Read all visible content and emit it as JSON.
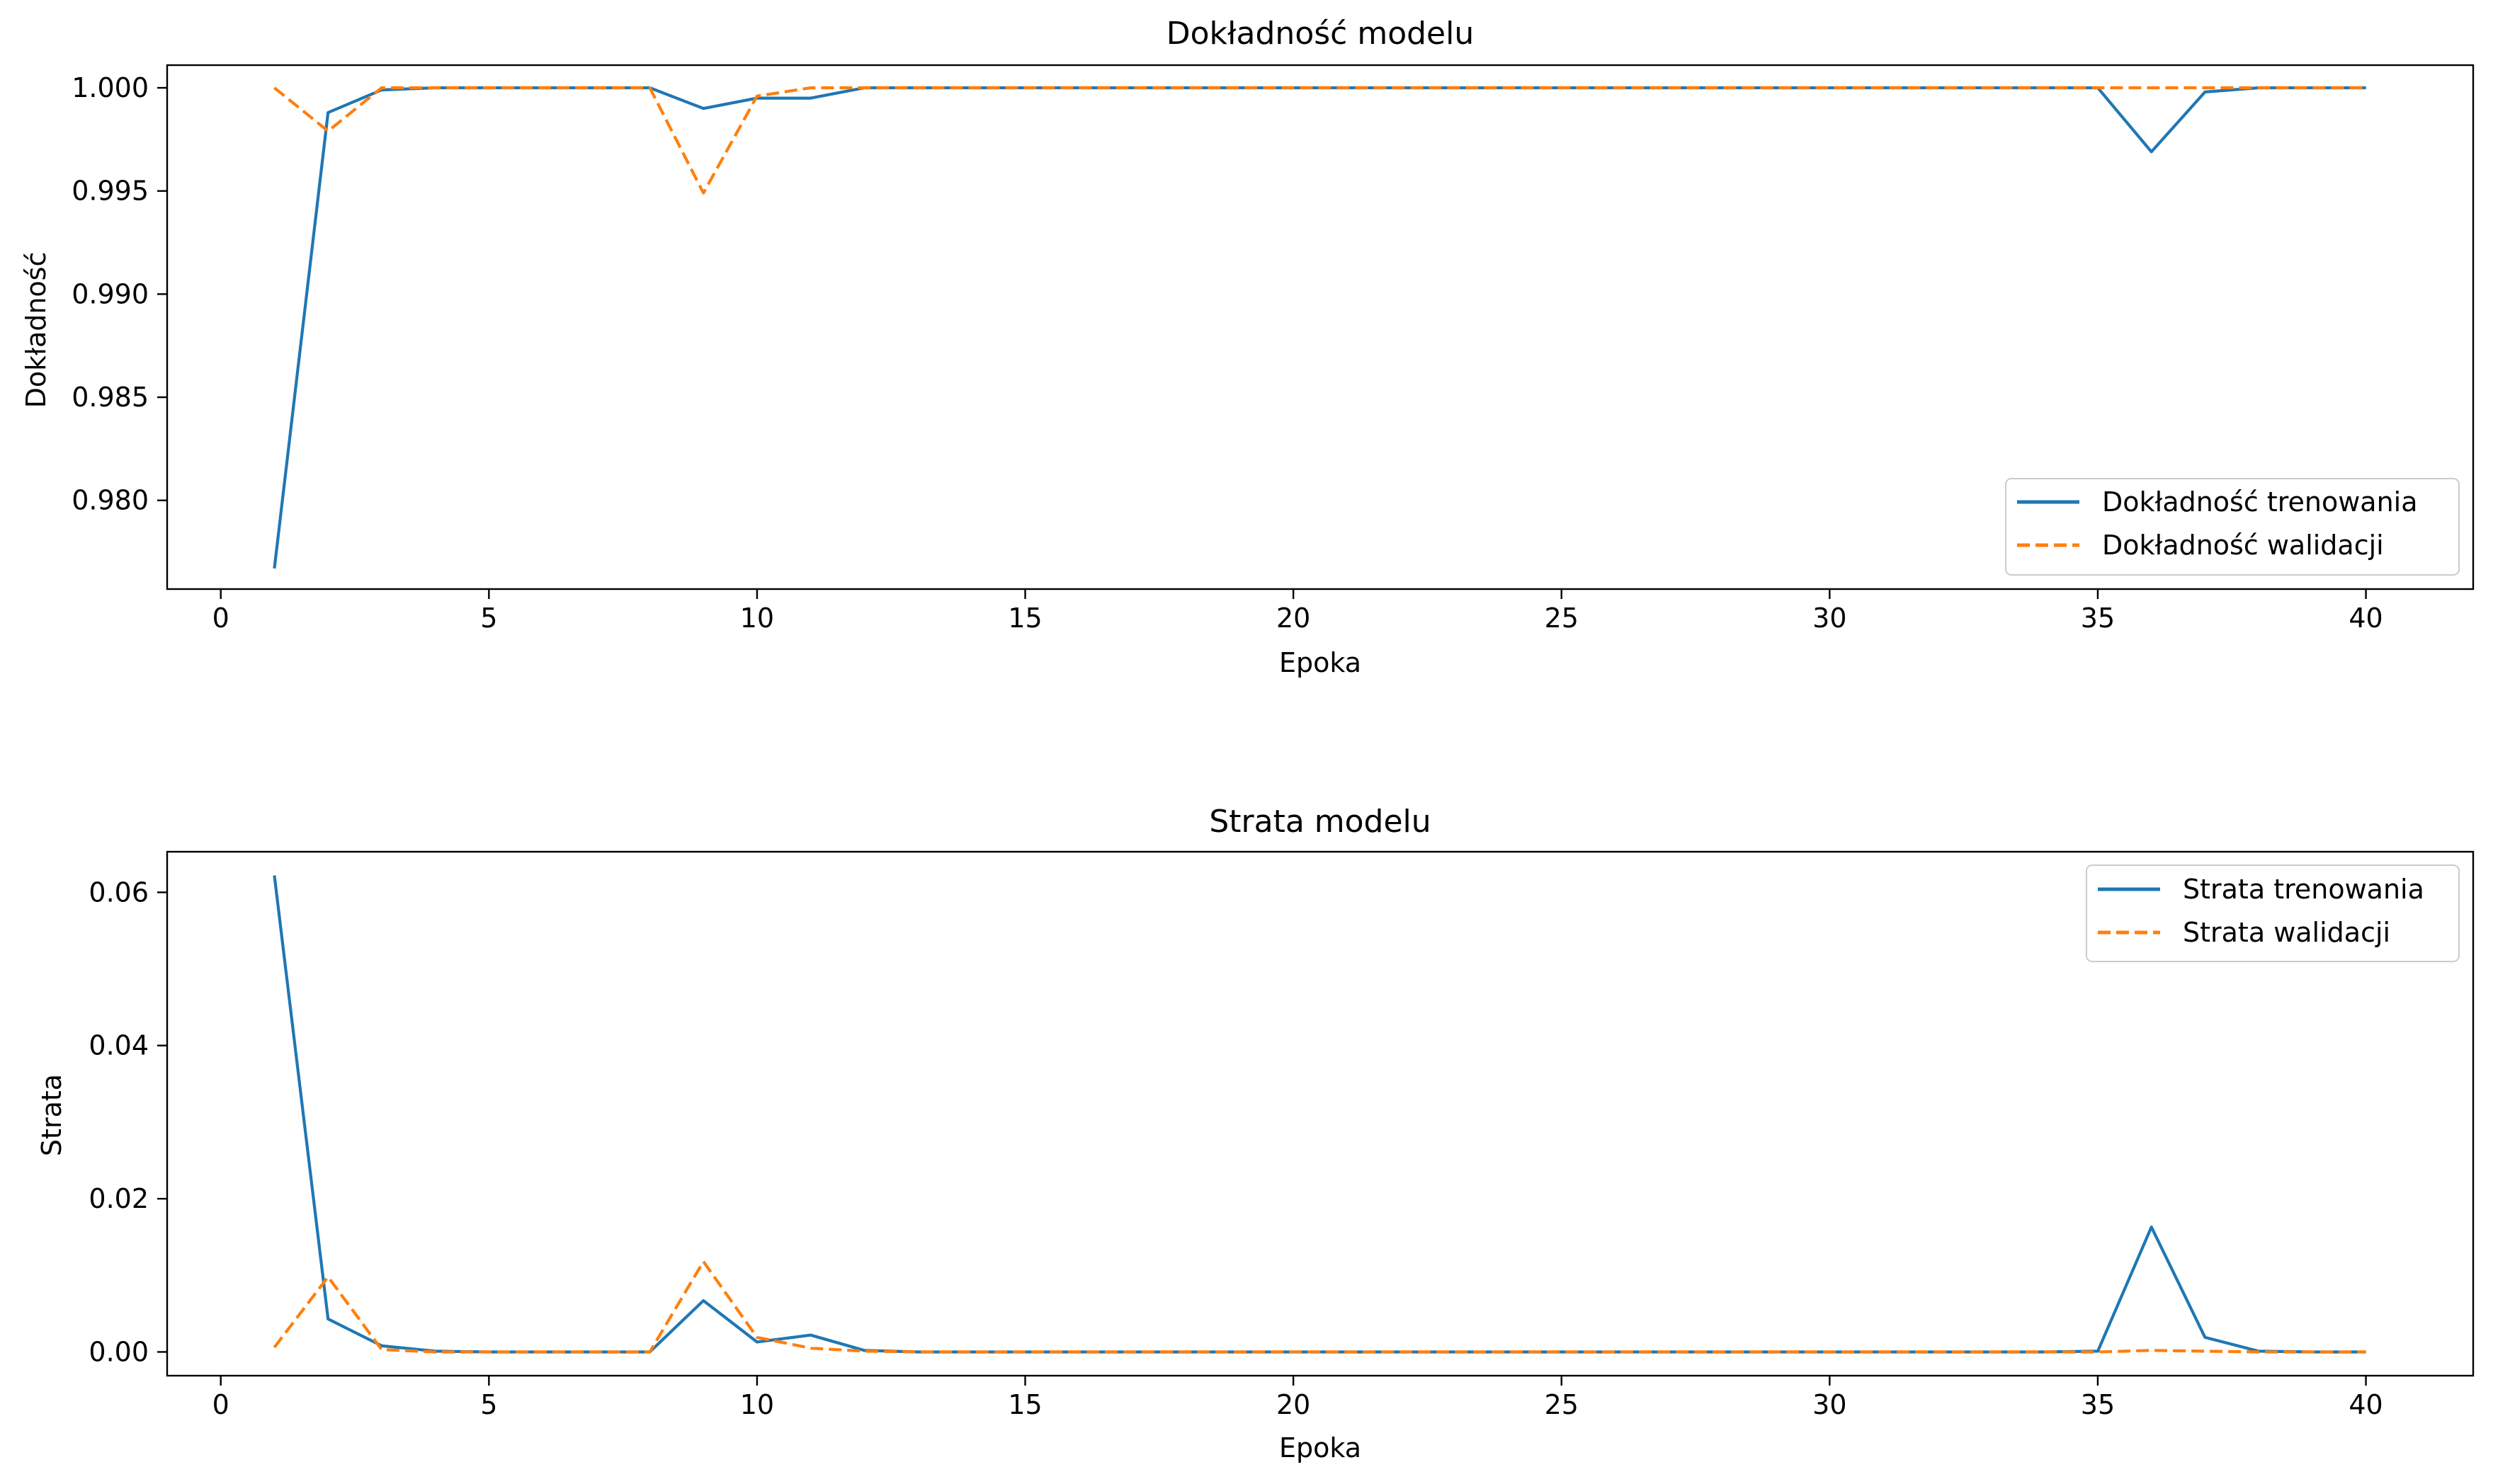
{
  "chart_data": [
    {
      "type": "line",
      "title": "Dokładność modelu",
      "xlabel": "Epoka",
      "ylabel": "Dokładność",
      "xlim": [
        -1,
        42
      ],
      "ylim": [
        0.9757,
        1.0011
      ],
      "xticks": [
        0,
        5,
        10,
        15,
        20,
        25,
        30,
        35,
        40
      ],
      "yticks": [
        0.98,
        0.985,
        0.99,
        0.995,
        1.0
      ],
      "ytick_labels": [
        "0.980",
        "0.985",
        "0.990",
        "0.995",
        "1.000"
      ],
      "grid": false,
      "legend_position": "lower-right",
      "x": [
        1,
        2,
        3,
        4,
        5,
        6,
        7,
        8,
        9,
        10,
        11,
        12,
        13,
        14,
        15,
        16,
        17,
        18,
        19,
        20,
        21,
        22,
        23,
        24,
        25,
        26,
        27,
        28,
        29,
        30,
        31,
        32,
        33,
        34,
        35,
        36,
        37,
        38,
        39,
        40
      ],
      "series": [
        {
          "name": "Dokładność trenowania",
          "color": "#1f77b4",
          "style": "solid",
          "values": [
            0.9767,
            0.9988,
            0.9999,
            1.0,
            1.0,
            1.0,
            1.0,
            1.0,
            0.999,
            0.9995,
            0.9995,
            1.0,
            1.0,
            1.0,
            1.0,
            1.0,
            1.0,
            1.0,
            1.0,
            1.0,
            1.0,
            1.0,
            1.0,
            1.0,
            1.0,
            1.0,
            1.0,
            1.0,
            1.0,
            1.0,
            1.0,
            1.0,
            1.0,
            1.0,
            1.0,
            0.9969,
            0.9998,
            1.0,
            1.0,
            1.0
          ]
        },
        {
          "name": "Dokładność walidacji",
          "color": "#ff7f0e",
          "style": "dashed",
          "values": [
            1.0,
            0.9979,
            1.0,
            1.0,
            1.0,
            1.0,
            1.0,
            1.0,
            0.9949,
            0.9996,
            1.0,
            1.0,
            1.0,
            1.0,
            1.0,
            1.0,
            1.0,
            1.0,
            1.0,
            1.0,
            1.0,
            1.0,
            1.0,
            1.0,
            1.0,
            1.0,
            1.0,
            1.0,
            1.0,
            1.0,
            1.0,
            1.0,
            1.0,
            1.0,
            1.0,
            1.0,
            1.0,
            1.0,
            1.0,
            1.0
          ]
        }
      ]
    },
    {
      "type": "line",
      "title": "Strata modelu",
      "xlabel": "Epoka",
      "ylabel": "Strata",
      "xlim": [
        -1,
        42
      ],
      "ylim": [
        -0.0031,
        0.0653
      ],
      "xticks": [
        0,
        5,
        10,
        15,
        20,
        25,
        30,
        35,
        40
      ],
      "yticks": [
        0.0,
        0.02,
        0.04,
        0.06
      ],
      "ytick_labels": [
        "0.00",
        "0.02",
        "0.04",
        "0.06"
      ],
      "grid": false,
      "legend_position": "upper-right",
      "x": [
        1,
        2,
        3,
        4,
        5,
        6,
        7,
        8,
        9,
        10,
        11,
        12,
        13,
        14,
        15,
        16,
        17,
        18,
        19,
        20,
        21,
        22,
        23,
        24,
        25,
        26,
        27,
        28,
        29,
        30,
        31,
        32,
        33,
        34,
        35,
        36,
        37,
        38,
        39,
        40
      ],
      "series": [
        {
          "name": "Strata trenowania",
          "color": "#1f77b4",
          "style": "solid",
          "values": [
            0.0622,
            0.0043,
            0.0008,
            0.0001,
            0.0,
            0.0,
            0.0,
            0.0,
            0.0067,
            0.0013,
            0.0022,
            0.0002,
            0.0,
            0.0,
            0.0,
            0.0,
            0.0,
            0.0,
            0.0,
            0.0,
            0.0,
            0.0,
            0.0,
            0.0,
            0.0,
            0.0,
            0.0,
            0.0,
            0.0,
            0.0,
            0.0,
            0.0,
            0.0,
            0.0,
            0.0001,
            0.0163,
            0.0019,
            0.0001,
            0.0,
            0.0
          ]
        },
        {
          "name": "Strata walidacji",
          "color": "#ff7f0e",
          "style": "dashed",
          "values": [
            0.0006,
            0.0098,
            0.0003,
            0.0,
            0.0,
            0.0,
            0.0,
            0.0,
            0.0118,
            0.0019,
            0.0005,
            0.0001,
            0.0,
            0.0,
            0.0,
            0.0,
            0.0,
            0.0,
            0.0,
            0.0,
            0.0,
            0.0,
            0.0,
            0.0,
            0.0,
            0.0,
            0.0,
            0.0,
            0.0,
            0.0,
            0.0,
            0.0,
            0.0,
            0.0,
            0.0,
            0.0002,
            0.0001,
            0.0,
            0.0,
            0.0
          ]
        }
      ]
    }
  ]
}
